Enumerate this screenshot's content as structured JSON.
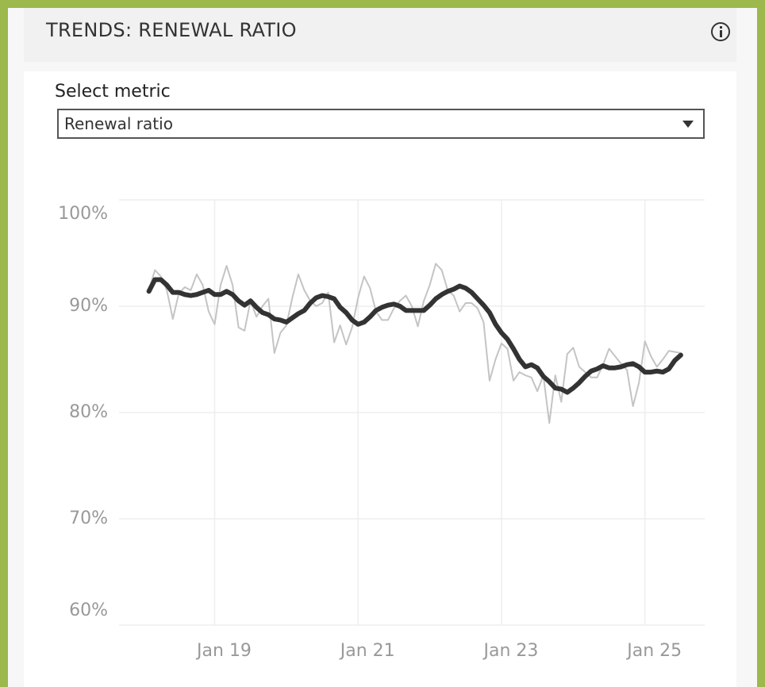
{
  "header": {
    "title": "TRENDS: RENEWAL RATIO"
  },
  "select": {
    "label": "Select metric",
    "value": "Renewal ratio"
  },
  "chart_data": {
    "type": "line",
    "x": [
      "2018-02",
      "2018-03",
      "2018-04",
      "2018-05",
      "2018-06",
      "2018-07",
      "2018-08",
      "2018-09",
      "2018-10",
      "2018-11",
      "2018-12",
      "2019-01",
      "2019-02",
      "2019-03",
      "2019-04",
      "2019-05",
      "2019-06",
      "2019-07",
      "2019-08",
      "2019-09",
      "2019-10",
      "2019-11",
      "2019-12",
      "2020-01",
      "2020-02",
      "2020-03",
      "2020-04",
      "2020-05",
      "2020-06",
      "2020-07",
      "2020-08",
      "2020-09",
      "2020-10",
      "2020-11",
      "2020-12",
      "2021-01",
      "2021-02",
      "2021-03",
      "2021-04",
      "2021-05",
      "2021-06",
      "2021-07",
      "2021-08",
      "2021-09",
      "2021-10",
      "2021-11",
      "2021-12",
      "2022-01",
      "2022-02",
      "2022-03",
      "2022-04",
      "2022-05",
      "2022-06",
      "2022-07",
      "2022-08",
      "2022-09",
      "2022-10",
      "2022-11",
      "2022-12",
      "2023-01",
      "2023-02",
      "2023-03",
      "2023-04",
      "2023-05",
      "2023-06",
      "2023-07",
      "2023-08",
      "2023-09",
      "2023-10",
      "2023-11",
      "2023-12",
      "2024-01",
      "2024-02",
      "2024-03",
      "2024-04",
      "2024-05",
      "2024-06",
      "2024-07",
      "2024-08",
      "2024-09",
      "2024-10",
      "2024-11",
      "2024-12",
      "2025-01",
      "2025-02",
      "2025-03",
      "2025-04",
      "2025-05",
      "2025-06",
      "2025-07"
    ],
    "series": [
      {
        "color": "#c4c4c4",
        "width": 2,
        "values": [
          91.5,
          93.4,
          92.8,
          91.5,
          88.8,
          91.2,
          91.8,
          91.5,
          93.0,
          92.0,
          89.5,
          88.3,
          92.0,
          93.8,
          92.0,
          88.0,
          87.7,
          90.5,
          89.0,
          90.0,
          90.7,
          85.6,
          87.5,
          88.2,
          90.8,
          93.0,
          91.5,
          90.5,
          90.0,
          90.3,
          91.3,
          86.6,
          88.2,
          86.4,
          88.0,
          90.8,
          92.8,
          91.7,
          89.5,
          88.7,
          88.7,
          89.8,
          90.5,
          91.0,
          90.0,
          88.1,
          90.5,
          92.0,
          94.0,
          93.4,
          91.5,
          91.0,
          89.5,
          90.3,
          90.3,
          89.8,
          88.5,
          83.0,
          85.0,
          86.5,
          86.0,
          83.0,
          83.8,
          83.5,
          83.3,
          82.0,
          83.5,
          79.0,
          83.5,
          81.0,
          85.5,
          86.1,
          84.3,
          83.8,
          83.3,
          83.3,
          84.5,
          86.0,
          85.3,
          84.6,
          84.0,
          80.6,
          82.8,
          86.7,
          85.3,
          84.3,
          85.0,
          85.8,
          85.7,
          85.6
        ]
      },
      {
        "color": "#333333",
        "width": 6,
        "values": [
          91.4,
          92.5,
          92.5,
          92.0,
          91.3,
          91.3,
          91.1,
          91.0,
          91.1,
          91.3,
          91.5,
          91.1,
          91.1,
          91.4,
          91.1,
          90.5,
          90.1,
          90.5,
          89.9,
          89.4,
          89.2,
          88.8,
          88.7,
          88.5,
          88.9,
          89.3,
          89.6,
          90.3,
          90.8,
          91.0,
          90.9,
          90.7,
          89.9,
          89.4,
          88.7,
          88.3,
          88.5,
          89.0,
          89.6,
          89.9,
          90.1,
          90.2,
          90.0,
          89.6,
          89.6,
          89.6,
          89.6,
          90.1,
          90.7,
          91.1,
          91.4,
          91.6,
          91.9,
          91.7,
          91.3,
          90.7,
          90.1,
          89.4,
          88.3,
          87.5,
          86.9,
          86.0,
          85.0,
          84.3,
          84.5,
          84.2,
          83.4,
          82.9,
          82.3,
          82.2,
          81.9,
          82.3,
          82.8,
          83.4,
          83.9,
          84.1,
          84.4,
          84.2,
          84.2,
          84.3,
          84.5,
          84.6,
          84.3,
          83.8,
          83.8,
          83.9,
          83.8,
          84.1,
          84.9,
          85.4
        ]
      }
    ],
    "xlim": [
      "2017-09",
      "2025-11"
    ],
    "xticks": [
      {
        "value": "2019-01",
        "label": "Jan 19"
      },
      {
        "value": "2021-01",
        "label": "Jan 21"
      },
      {
        "value": "2023-01",
        "label": "Jan 23"
      },
      {
        "value": "2025-01",
        "label": "Jan 25"
      }
    ],
    "ylim": [
      60,
      100
    ],
    "yticks": [
      {
        "value": 60,
        "label": "60%"
      },
      {
        "value": 70,
        "label": "70%"
      },
      {
        "value": 80,
        "label": "80%"
      },
      {
        "value": 90,
        "label": "90%"
      },
      {
        "value": 100,
        "label": "100%"
      }
    ],
    "grid": true
  }
}
